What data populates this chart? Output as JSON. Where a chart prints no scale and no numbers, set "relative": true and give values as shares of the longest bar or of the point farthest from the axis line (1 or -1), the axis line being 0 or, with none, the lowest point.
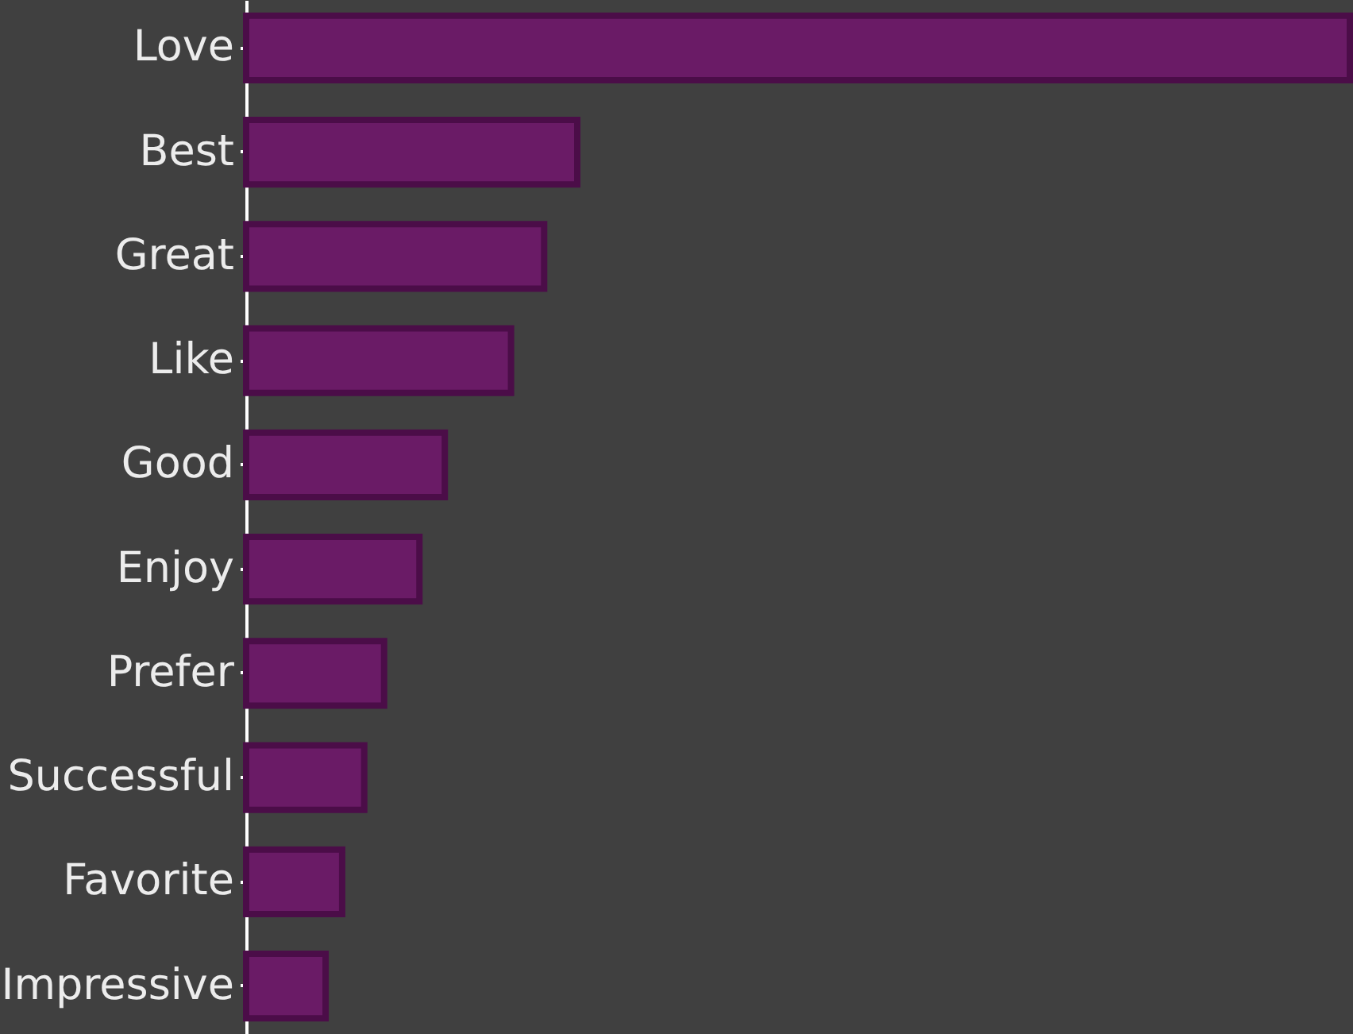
{
  "chart_data": {
    "type": "bar",
    "orientation": "horizontal",
    "relative": true,
    "categories": [
      "Love",
      "Best",
      "Great",
      "Like",
      "Good",
      "Enjoy",
      "Prefer",
      "Successful",
      "Favorite",
      "Impressive"
    ],
    "values": [
      1,
      0.3,
      0.27,
      0.24,
      0.18,
      0.157,
      0.125,
      0.107,
      0.087,
      0.072
    ],
    "color": "#6a1b66"
  }
}
